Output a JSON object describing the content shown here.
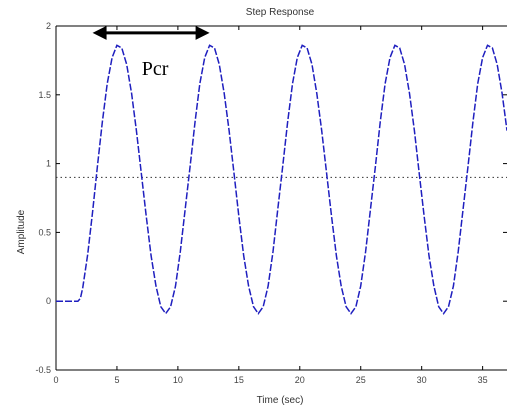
{
  "chart_data": {
    "type": "line",
    "title": "Step Response",
    "xlabel": "Time (sec)",
    "ylabel": "Amplitude",
    "xlim": [
      0,
      37
    ],
    "ylim": [
      -0.5,
      2
    ],
    "xticks": [
      0,
      5,
      10,
      15,
      20,
      25,
      30,
      35
    ],
    "xtick_labels": [
      "0",
      "5",
      "10",
      "15",
      "20",
      "25",
      "30",
      "35"
    ],
    "yticks": [
      -0.5,
      0,
      0.5,
      1,
      1.5,
      2
    ],
    "ytick_labels": [
      "-0.5",
      "0",
      "0.5",
      "1",
      "1.5",
      "2"
    ],
    "grid": false,
    "series": [
      {
        "style": "dashed",
        "color": "#1f1fbf",
        "x": [
          0,
          1.8,
          2.0,
          2.2,
          2.6,
          3.0,
          3.4,
          3.8,
          4.2,
          4.6,
          5.0,
          5.4,
          5.8,
          6.2,
          6.6,
          7.0,
          7.4,
          7.8,
          8.2,
          8.6,
          9.0,
          9.4,
          9.8,
          10.2,
          10.6,
          11.0,
          11.4,
          11.8,
          12.2,
          12.6,
          13.0,
          13.4,
          13.8,
          14.2,
          14.6,
          15.0,
          15.4,
          15.8,
          16.2,
          16.6,
          17.0,
          17.4,
          17.8,
          18.2,
          18.6,
          19.0,
          19.4,
          19.8,
          20.2,
          20.6,
          21.0,
          21.4,
          21.8,
          22.2,
          22.6,
          23.0,
          23.4,
          23.8,
          24.2,
          24.6,
          25.0,
          25.4,
          25.8,
          26.2,
          26.6,
          27.0,
          27.4,
          27.8,
          28.2,
          28.6,
          29.0,
          29.4,
          29.8,
          30.2,
          30.6,
          31.0,
          31.4,
          31.8,
          32.2,
          32.6,
          33.0,
          33.4,
          33.8,
          34.2,
          34.6,
          35.0,
          35.4,
          35.8,
          36.2,
          36.6,
          37.0
        ],
        "y": [
          0,
          0,
          0.02,
          0.1,
          0.34,
          0.65,
          0.98,
          1.3,
          1.58,
          1.77,
          1.86,
          1.84,
          1.72,
          1.51,
          1.24,
          0.93,
          0.62,
          0.33,
          0.11,
          -0.04,
          -0.09,
          -0.04,
          0.11,
          0.36,
          0.67,
          0.98,
          1.3,
          1.58,
          1.77,
          1.86,
          1.84,
          1.72,
          1.51,
          1.24,
          0.93,
          0.62,
          0.33,
          0.11,
          -0.04,
          -0.09,
          -0.04,
          0.11,
          0.36,
          0.67,
          0.98,
          1.3,
          1.58,
          1.77,
          1.86,
          1.84,
          1.72,
          1.51,
          1.24,
          0.93,
          0.62,
          0.33,
          0.11,
          -0.04,
          -0.09,
          -0.04,
          0.11,
          0.36,
          0.67,
          0.98,
          1.3,
          1.58,
          1.77,
          1.86,
          1.84,
          1.72,
          1.51,
          1.24,
          0.93,
          0.62,
          0.33,
          0.11,
          -0.04,
          -0.09,
          -0.04,
          0.11,
          0.36,
          0.67,
          0.98,
          1.3,
          1.58,
          1.77,
          1.86,
          1.84,
          1.72,
          1.51,
          1.24
        ]
      }
    ],
    "reference_line": {
      "y": 0.9,
      "style": "dotted",
      "color": "#333333"
    },
    "annotations": [
      {
        "text": "Pcr",
        "type": "double-arrow",
        "x_start": 3.0,
        "x_end": 12.6,
        "y": 1.95
      }
    ]
  }
}
